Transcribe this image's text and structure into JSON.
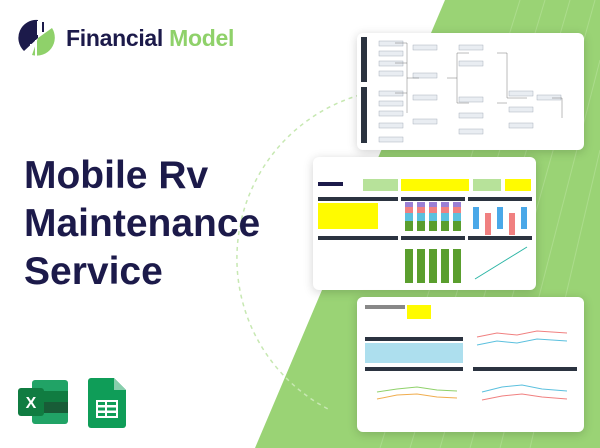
{
  "brand": {
    "name_part1": "Financial",
    "name_part2": "Model"
  },
  "title": {
    "line1": "Mobile Rv",
    "line2": "Maintenance",
    "line3": "Service"
  },
  "colors": {
    "navy": "#1c1a4a",
    "green": "#8fd16a",
    "excel": "#1d6f42",
    "sheets": "#0f9d58"
  },
  "icons": [
    "excel-icon",
    "google-sheets-icon"
  ],
  "cards": [
    "financial-diagram-preview",
    "dashboard-preview",
    "charts-preview"
  ]
}
